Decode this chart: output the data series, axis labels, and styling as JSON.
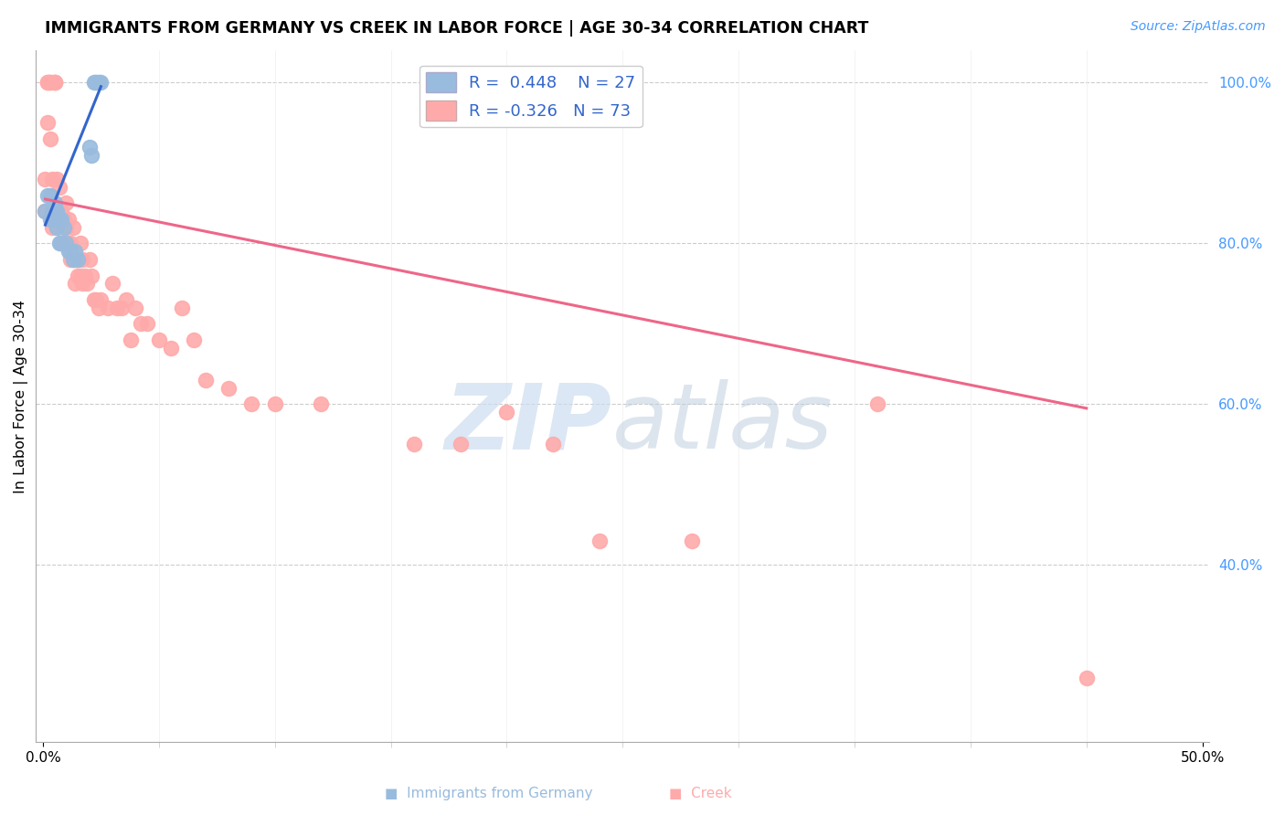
{
  "title": "IMMIGRANTS FROM GERMANY VS CREEK IN LABOR FORCE | AGE 30-34 CORRELATION CHART",
  "source": "Source: ZipAtlas.com",
  "ylabel": "In Labor Force | Age 30-34",
  "xlim": [
    -0.003,
    0.503
  ],
  "ylim": [
    0.18,
    1.04
  ],
  "xticks": [
    0.0,
    0.5
  ],
  "xtick_labels": [
    "0.0%",
    "50.0%"
  ],
  "yticks_right": [
    0.4,
    0.6,
    0.8,
    1.0
  ],
  "ytick_labels_right": [
    "40.0%",
    "60.0%",
    "80.0%",
    "100.0%"
  ],
  "legend_blue_r": "R =  0.448",
  "legend_blue_n": "N = 27",
  "legend_pink_r": "R = -0.326",
  "legend_pink_n": "N = 73",
  "blue_color": "#99BBDD",
  "pink_color": "#FFAAAA",
  "blue_line_color": "#3366CC",
  "pink_line_color": "#EE6688",
  "germany_x": [
    0.001,
    0.002,
    0.003,
    0.003,
    0.004,
    0.004,
    0.005,
    0.005,
    0.006,
    0.006,
    0.007,
    0.007,
    0.008,
    0.008,
    0.009,
    0.01,
    0.011,
    0.012,
    0.013,
    0.014,
    0.015,
    0.02,
    0.021,
    0.022,
    0.023,
    0.024,
    0.025
  ],
  "germany_y": [
    0.84,
    0.86,
    0.83,
    0.86,
    0.84,
    0.83,
    0.84,
    0.85,
    0.82,
    0.84,
    0.8,
    0.83,
    0.8,
    0.83,
    0.82,
    0.8,
    0.79,
    0.79,
    0.78,
    0.79,
    0.78,
    0.92,
    0.91,
    1.0,
    1.0,
    1.0,
    1.0
  ],
  "creek_x": [
    0.001,
    0.001,
    0.002,
    0.002,
    0.002,
    0.003,
    0.003,
    0.003,
    0.004,
    0.004,
    0.005,
    0.005,
    0.005,
    0.006,
    0.006,
    0.006,
    0.007,
    0.007,
    0.008,
    0.008,
    0.009,
    0.009,
    0.01,
    0.01,
    0.01,
    0.011,
    0.011,
    0.012,
    0.012,
    0.013,
    0.013,
    0.014,
    0.014,
    0.015,
    0.015,
    0.016,
    0.016,
    0.017,
    0.017,
    0.018,
    0.019,
    0.02,
    0.021,
    0.022,
    0.023,
    0.024,
    0.025,
    0.028,
    0.03,
    0.032,
    0.034,
    0.036,
    0.038,
    0.04,
    0.042,
    0.045,
    0.05,
    0.055,
    0.06,
    0.065,
    0.07,
    0.08,
    0.09,
    0.1,
    0.12,
    0.16,
    0.18,
    0.2,
    0.22,
    0.24,
    0.28,
    0.36,
    0.45
  ],
  "creek_y": [
    0.84,
    0.88,
    0.95,
    1.0,
    1.0,
    1.0,
    1.0,
    0.93,
    0.88,
    0.82,
    1.0,
    1.0,
    1.0,
    0.88,
    0.82,
    0.83,
    0.83,
    0.87,
    0.84,
    0.8,
    0.83,
    0.8,
    0.82,
    0.85,
    0.82,
    0.8,
    0.83,
    0.8,
    0.78,
    0.78,
    0.82,
    0.78,
    0.75,
    0.78,
    0.76,
    0.76,
    0.8,
    0.75,
    0.78,
    0.76,
    0.75,
    0.78,
    0.76,
    0.73,
    0.73,
    0.72,
    0.73,
    0.72,
    0.75,
    0.72,
    0.72,
    0.73,
    0.68,
    0.72,
    0.7,
    0.7,
    0.68,
    0.67,
    0.72,
    0.68,
    0.63,
    0.62,
    0.6,
    0.6,
    0.6,
    0.55,
    0.55,
    0.59,
    0.55,
    0.43,
    0.43,
    0.6,
    0.26
  ],
  "blue_trend_x": [
    0.001,
    0.025
  ],
  "blue_trend_y": [
    0.823,
    0.995
  ],
  "pink_trend_x": [
    0.001,
    0.45
  ],
  "pink_trend_y": [
    0.855,
    0.595
  ]
}
